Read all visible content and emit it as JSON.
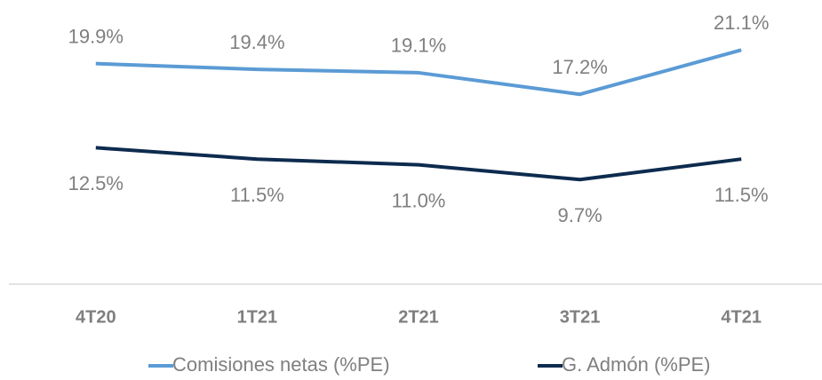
{
  "chart_data": {
    "type": "line",
    "categories": [
      "4T20",
      "1T21",
      "2T21",
      "3T21",
      "4T21"
    ],
    "ylim": [
      0.5,
      25.5
    ],
    "series": [
      {
        "name": "Comisiones netas (%PE)",
        "color": "#5b9bd5",
        "values": [
          19.9,
          19.4,
          19.1,
          17.2,
          21.1
        ],
        "value_labels": [
          "19.9%",
          "19.4%",
          "19.1%",
          "17.2%",
          "21.1%"
        ]
      },
      {
        "name": "G. Admón (%PE)",
        "color": "#0d2b4e",
        "values": [
          12.5,
          11.5,
          11.0,
          9.7,
          11.5
        ],
        "value_labels": [
          "12.5%",
          "11.5%",
          "11.0%",
          "9.7%",
          "11.5%"
        ]
      }
    ]
  }
}
